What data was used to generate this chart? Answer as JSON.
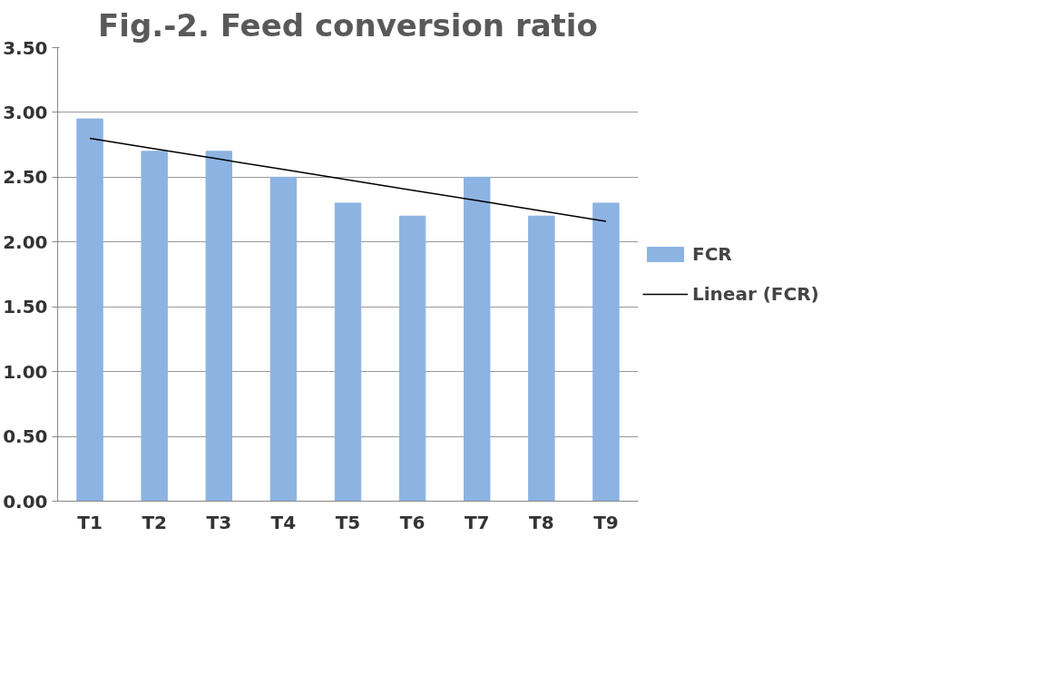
{
  "chart_data": {
    "type": "bar",
    "title": "Fig.-2. Feed conversion ratio",
    "categories": [
      "T1",
      "T2",
      "T3",
      "T4",
      "T5",
      "T6",
      "T7",
      "T8",
      "T9"
    ],
    "series": [
      {
        "name": "FCR",
        "color": "#8db3e2",
        "values": [
          2.95,
          2.7,
          2.7,
          2.5,
          2.3,
          2.2,
          2.5,
          2.2,
          2.3
        ]
      },
      {
        "name": "Linear (FCR)",
        "type": "line",
        "color": "#000000",
        "values": [
          2.8,
          2.72,
          2.64,
          2.56,
          2.48,
          2.4,
          2.32,
          2.24,
          2.16
        ]
      }
    ],
    "ylim": [
      0,
      3.5
    ],
    "yticks": [
      {
        "value": 0,
        "label": "0.00"
      },
      {
        "value": 0.5,
        "label": "0.50"
      },
      {
        "value": 1,
        "label": "1.00"
      },
      {
        "value": 1.5,
        "label": "1.50"
      },
      {
        "value": 2,
        "label": "2.00"
      },
      {
        "value": 2.5,
        "label": "2.50"
      },
      {
        "value": 3,
        "label": "3.00"
      },
      {
        "value": 3.5,
        "label": "3.50"
      }
    ],
    "grid": "y",
    "legend": "right",
    "marker": "none",
    "line_style": "solid"
  }
}
